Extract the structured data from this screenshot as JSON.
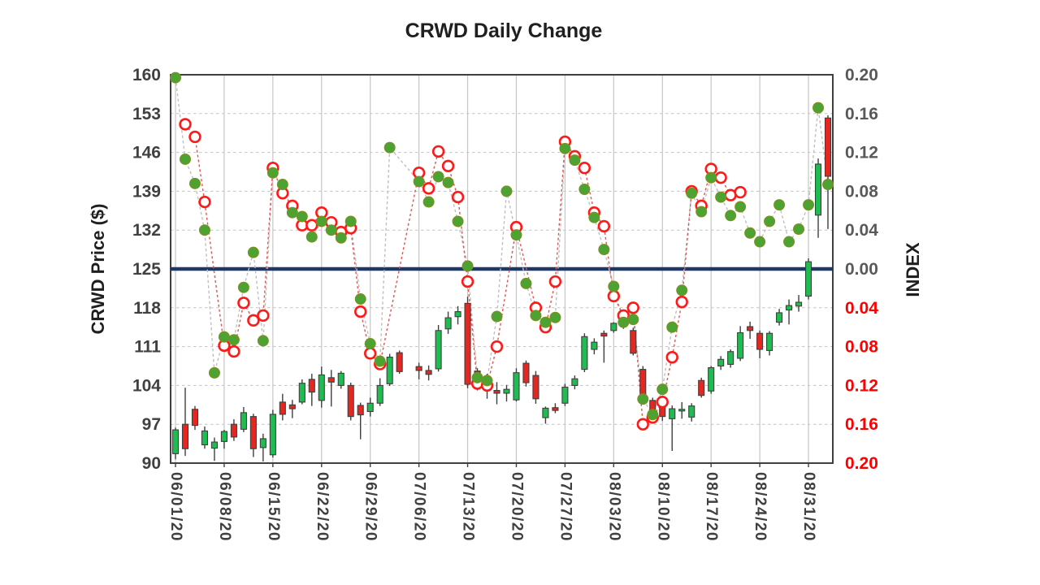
{
  "title": "CRWD Daily Change",
  "left_axis": {
    "title": "CRWD Price ($)",
    "min": 90,
    "max": 160,
    "ticks": [
      160,
      153,
      146,
      139,
      132,
      125,
      118,
      111,
      104,
      97,
      90
    ]
  },
  "right_axis": {
    "title": "INDEX",
    "min": -0.2,
    "max": 0.2,
    "labels": [
      {
        "text": "0.20",
        "color": "#595959"
      },
      {
        "text": "0.16",
        "color": "#595959"
      },
      {
        "text": "0.12",
        "color": "#595959"
      },
      {
        "text": "0.08",
        "color": "#595959"
      },
      {
        "text": "0.04",
        "color": "#595959"
      },
      {
        "text": "0.00",
        "color": "#595959"
      },
      {
        "text": "0.04",
        "color": "#FF0000"
      },
      {
        "text": "0.08",
        "color": "#FF0000"
      },
      {
        "text": "0.12",
        "color": "#FF0000"
      },
      {
        "text": "0.16",
        "color": "#FF0000"
      },
      {
        "text": "0.20",
        "color": "#FF0000"
      }
    ]
  },
  "x_axis": {
    "week_label_slots": [
      0,
      5,
      10,
      15,
      20,
      25,
      30,
      35,
      40,
      45,
      50,
      55,
      60,
      65
    ]
  },
  "baseline": {
    "price": 125,
    "index": 0.0,
    "color": "#1F3864"
  },
  "style": {
    "candle_up": "#1CBE4F",
    "candle_down": "#E8251F",
    "candle_border": "#3F3F3F",
    "dot_green_fill": "#4CA331",
    "dot_green_border": "#7E8F21",
    "ring_red": "#FF1A1A",
    "connector_green_series": "#BFBFBF",
    "connector_red_series": "#E05555",
    "grid_vertical": "#C6C6C6",
    "grid_horizontal": "#C3C3C3",
    "plot_border": "#3F3F3F",
    "tick_label": "#404040"
  },
  "chart_data": {
    "type": "candlestick+scatter",
    "price_axis_range": [
      90,
      160
    ],
    "index_axis_range": [
      -0.2,
      0.2
    ],
    "days": [
      {
        "d": "06/01/20",
        "o": 91.7,
        "h": 96.4,
        "l": 90.7,
        "c": 96.0,
        "g": 0.197,
        "r": null
      },
      {
        "d": "06/02/20",
        "o": 97.0,
        "h": 103.6,
        "l": 91.3,
        "c": 92.6,
        "g": 0.113,
        "r": 0.149
      },
      {
        "d": "06/03/20",
        "o": 99.7,
        "h": 100.3,
        "l": 96.0,
        "c": 96.8,
        "g": 0.088,
        "r": 0.136
      },
      {
        "d": "06/04/20",
        "o": 93.3,
        "h": 96.6,
        "l": 92.6,
        "c": 95.8,
        "g": 0.04,
        "r": 0.069
      },
      {
        "d": "06/05/20",
        "o": 92.7,
        "h": 94.6,
        "l": 90.4,
        "c": 93.8,
        "g": -0.107,
        "r": null
      },
      {
        "d": "06/08/20",
        "o": 93.9,
        "h": 96.0,
        "l": 92.6,
        "c": 95.7,
        "g": -0.07,
        "r": -0.079
      },
      {
        "d": "06/09/20",
        "o": 97.0,
        "h": 97.9,
        "l": 94.0,
        "c": 94.7,
        "g": -0.073,
        "r": -0.085
      },
      {
        "d": "06/10/20",
        "o": 96.1,
        "h": 100.1,
        "l": 95.6,
        "c": 99.1,
        "g": -0.019,
        "r": -0.035
      },
      {
        "d": "06/11/20",
        "o": 98.4,
        "h": 98.9,
        "l": 91.1,
        "c": 92.6,
        "g": 0.017,
        "r": -0.053
      },
      {
        "d": "06/12/20",
        "o": 92.8,
        "h": 95.3,
        "l": 90.3,
        "c": 94.4,
        "g": -0.074,
        "r": -0.048
      },
      {
        "d": "06/15/20",
        "o": 91.5,
        "h": 99.6,
        "l": 91.0,
        "c": 98.8,
        "g": 0.099,
        "r": 0.104
      },
      {
        "d": "06/16/20",
        "o": 101.0,
        "h": 102.5,
        "l": 97.7,
        "c": 98.8,
        "g": 0.087,
        "r": 0.078
      },
      {
        "d": "06/17/20",
        "o": 100.5,
        "h": 101.4,
        "l": 98.1,
        "c": 99.8,
        "g": 0.058,
        "r": 0.065
      },
      {
        "d": "06/18/20",
        "o": 101.0,
        "h": 105.1,
        "l": 100.6,
        "c": 104.4,
        "g": 0.054,
        "r": 0.045
      },
      {
        "d": "06/19/20",
        "o": 105.1,
        "h": 106.1,
        "l": 100.3,
        "c": 102.8,
        "g": 0.033,
        "r": 0.045
      },
      {
        "d": "06/22/20",
        "o": 101.3,
        "h": 107.4,
        "l": 100.0,
        "c": 105.9,
        "g": 0.049,
        "r": 0.058
      },
      {
        "d": "06/23/20",
        "o": 105.4,
        "h": 106.8,
        "l": 100.2,
        "c": 104.6,
        "g": 0.04,
        "r": 0.048
      },
      {
        "d": "06/24/20",
        "o": 104.0,
        "h": 106.6,
        "l": 103.4,
        "c": 106.2,
        "g": 0.032,
        "r": 0.038
      },
      {
        "d": "06/25/20",
        "o": 104.0,
        "h": 104.5,
        "l": 97.7,
        "c": 98.4,
        "g": 0.049,
        "r": 0.042
      },
      {
        "d": "06/26/20",
        "o": 100.4,
        "h": 100.9,
        "l": 94.3,
        "c": 98.7,
        "g": -0.031,
        "r": -0.044
      },
      {
        "d": "06/29/20",
        "o": 99.3,
        "h": 101.8,
        "l": 98.4,
        "c": 100.8,
        "g": -0.077,
        "r": -0.087
      },
      {
        "d": "06/30/20",
        "o": 100.8,
        "h": 105.3,
        "l": 100.3,
        "c": 104.0,
        "g": -0.095,
        "r": -0.098
      },
      {
        "d": "07/01/20",
        "o": 104.3,
        "h": 109.7,
        "l": 103.9,
        "c": 109.1,
        "g": 0.125,
        "r": null
      },
      {
        "d": "07/02/20",
        "o": 109.9,
        "h": 110.3,
        "l": 106.1,
        "c": 106.5,
        "g": null,
        "r": null
      },
      {
        "d": "07/03/20",
        "o": null,
        "h": null,
        "l": null,
        "c": null,
        "g": null,
        "r": null
      },
      {
        "d": "07/06/20",
        "o": 107.4,
        "h": 108.1,
        "l": 105.1,
        "c": 106.7,
        "g": 0.09,
        "r": 0.099
      },
      {
        "d": "07/07/20",
        "o": 106.7,
        "h": 107.6,
        "l": 104.9,
        "c": 106.0,
        "g": 0.069,
        "r": 0.083
      },
      {
        "d": "07/08/20",
        "o": 107.0,
        "h": 114.9,
        "l": 106.5,
        "c": 113.9,
        "g": 0.095,
        "r": 0.121
      },
      {
        "d": "07/09/20",
        "o": 114.2,
        "h": 117.3,
        "l": 113.3,
        "c": 116.2,
        "g": 0.089,
        "r": 0.106
      },
      {
        "d": "07/10/20",
        "o": 116.4,
        "h": 118.3,
        "l": 115.0,
        "c": 117.3,
        "g": 0.049,
        "r": 0.074
      },
      {
        "d": "07/13/20",
        "o": 118.8,
        "h": 120.0,
        "l": 103.5,
        "c": 104.2,
        "g": 0.003,
        "r": -0.013
      },
      {
        "d": "07/14/20",
        "o": 106.6,
        "h": 107.1,
        "l": 103.1,
        "c": 104.1,
        "g": -0.112,
        "r": -0.118
      },
      {
        "d": "07/15/20",
        "o": 104.6,
        "h": 106.1,
        "l": 101.6,
        "c": 105.4,
        "g": -0.115,
        "r": -0.12
      },
      {
        "d": "07/16/20",
        "o": 103.1,
        "h": 104.6,
        "l": 100.6,
        "c": 102.6,
        "g": -0.049,
        "r": -0.08
      },
      {
        "d": "07/17/20",
        "o": 102.6,
        "h": 104.1,
        "l": 101.1,
        "c": 103.3,
        "g": 0.08,
        "r": null
      },
      {
        "d": "07/20/20",
        "o": 101.4,
        "h": 107.1,
        "l": 101.1,
        "c": 106.3,
        "g": 0.035,
        "r": 0.043
      },
      {
        "d": "07/21/20",
        "o": 108.0,
        "h": 108.5,
        "l": 103.8,
        "c": 104.5,
        "g": -0.015,
        "r": null
      },
      {
        "d": "07/22/20",
        "o": 105.8,
        "h": 106.6,
        "l": 100.7,
        "c": 101.6,
        "g": -0.048,
        "r": -0.04
      },
      {
        "d": "07/23/20",
        "o": 98.2,
        "h": 100.2,
        "l": 97.1,
        "c": 99.9,
        "g": -0.055,
        "r": -0.06
      },
      {
        "d": "07/24/20",
        "o": 100.0,
        "h": 100.8,
        "l": 99.0,
        "c": 99.5,
        "g": -0.05,
        "r": -0.013
      },
      {
        "d": "07/27/20",
        "o": 100.8,
        "h": 104.3,
        "l": 100.3,
        "c": 103.7,
        "g": 0.124,
        "r": 0.131
      },
      {
        "d": "07/28/20",
        "o": 104.0,
        "h": 105.8,
        "l": 103.3,
        "c": 105.2,
        "g": 0.112,
        "r": 0.116
      },
      {
        "d": "07/29/20",
        "o": 106.9,
        "h": 113.4,
        "l": 106.4,
        "c": 112.8,
        "g": 0.082,
        "r": 0.104
      },
      {
        "d": "07/30/20",
        "o": 110.5,
        "h": 112.5,
        "l": 109.6,
        "c": 111.8,
        "g": 0.053,
        "r": 0.058
      },
      {
        "d": "07/31/20",
        "o": 113.4,
        "h": 113.9,
        "l": 108.1,
        "c": 112.9,
        "g": 0.02,
        "r": 0.044
      },
      {
        "d": "08/03/20",
        "o": 113.9,
        "h": 115.4,
        "l": 113.5,
        "c": 115.2,
        "g": -0.018,
        "r": -0.028
      },
      {
        "d": "08/04/20",
        "o": 115.2,
        "h": 115.6,
        "l": 114.2,
        "c": 114.6,
        "g": -0.055,
        "r": -0.048
      },
      {
        "d": "08/05/20",
        "o": 113.9,
        "h": 114.4,
        "l": 109.4,
        "c": 109.8,
        "g": -0.052,
        "r": -0.04
      },
      {
        "d": "08/06/20",
        "o": 106.9,
        "h": 107.5,
        "l": 100.9,
        "c": 101.3,
        "g": -0.134,
        "r": -0.16
      },
      {
        "d": "08/07/20",
        "o": 101.3,
        "h": 101.8,
        "l": 97.5,
        "c": 97.9,
        "g": -0.15,
        "r": -0.153
      },
      {
        "d": "08/10/20",
        "o": 101.0,
        "h": 101.6,
        "l": 97.6,
        "c": 98.4,
        "g": -0.124,
        "r": -0.137
      },
      {
        "d": "08/11/20",
        "o": 98.0,
        "h": 100.4,
        "l": 92.2,
        "c": 99.8,
        "g": -0.06,
        "r": -0.091
      },
      {
        "d": "08/12/20",
        "o": 99.4,
        "h": 101.0,
        "l": 98.0,
        "c": 99.7,
        "g": -0.022,
        "r": -0.034
      },
      {
        "d": "08/13/20",
        "o": 98.3,
        "h": 100.8,
        "l": 97.5,
        "c": 100.3,
        "g": 0.078,
        "r": 0.08
      },
      {
        "d": "08/14/20",
        "o": 104.9,
        "h": 105.4,
        "l": 101.8,
        "c": 102.2,
        "g": 0.059,
        "r": 0.065
      },
      {
        "d": "08/17/20",
        "o": 103.0,
        "h": 107.5,
        "l": 102.5,
        "c": 107.2,
        "g": 0.094,
        "r": 0.103
      },
      {
        "d": "08/18/20",
        "o": 107.5,
        "h": 109.3,
        "l": 106.8,
        "c": 108.7,
        "g": 0.074,
        "r": 0.094
      },
      {
        "d": "08/19/20",
        "o": 107.8,
        "h": 110.5,
        "l": 107.2,
        "c": 110.1,
        "g": 0.055,
        "r": 0.076
      },
      {
        "d": "08/20/20",
        "o": 108.9,
        "h": 114.7,
        "l": 108.4,
        "c": 113.5,
        "g": 0.064,
        "r": 0.079
      },
      {
        "d": "08/21/20",
        "o": 114.6,
        "h": 115.5,
        "l": 112.4,
        "c": 113.9,
        "g": 0.037,
        "r": null
      },
      {
        "d": "08/24/20",
        "o": 113.4,
        "h": 113.9,
        "l": 108.9,
        "c": 110.5,
        "g": 0.028,
        "r": null
      },
      {
        "d": "08/25/20",
        "o": 110.3,
        "h": 113.8,
        "l": 109.4,
        "c": 113.4,
        "g": 0.049,
        "r": null
      },
      {
        "d": "08/26/20",
        "o": 115.4,
        "h": 117.8,
        "l": 114.8,
        "c": 117.1,
        "g": 0.066,
        "r": null
      },
      {
        "d": "08/27/20",
        "o": 117.6,
        "h": 119.5,
        "l": 115.0,
        "c": 118.4,
        "g": 0.028,
        "r": null
      },
      {
        "d": "08/28/20",
        "o": 118.3,
        "h": 120.3,
        "l": 117.3,
        "c": 119.0,
        "g": 0.041,
        "r": null
      },
      {
        "d": "08/31/20",
        "o": 120.1,
        "h": 126.9,
        "l": 119.5,
        "c": 126.3,
        "g": 0.066,
        "r": null
      },
      {
        "d": "09/01/20",
        "o": 134.7,
        "h": 144.9,
        "l": 130.6,
        "c": 143.9,
        "g": 0.166,
        "r": null
      },
      {
        "d": "09/02/20",
        "o": 152.2,
        "h": 152.7,
        "l": 132.2,
        "c": 141.7,
        "g": 0.087,
        "r": null
      }
    ]
  }
}
